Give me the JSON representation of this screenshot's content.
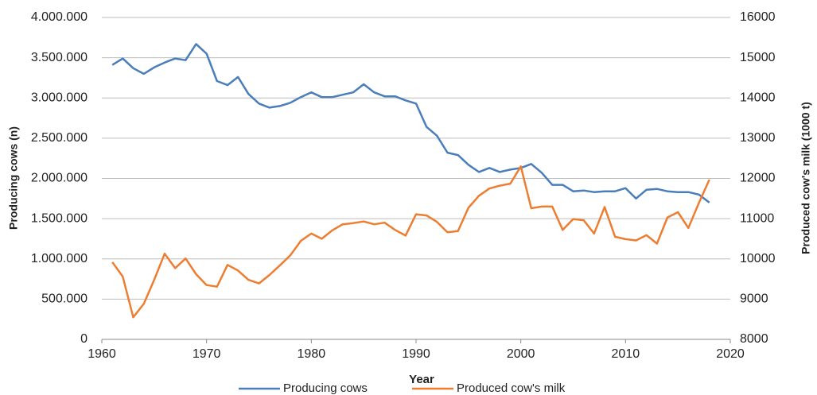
{
  "chart_data": {
    "type": "line",
    "x_label": "Year",
    "y_label": "Producing cows (n)",
    "y2_label": "Produced cow's milk (1000 t)",
    "x": [
      1961,
      1962,
      1963,
      1964,
      1965,
      1966,
      1967,
      1968,
      1969,
      1970,
      1971,
      1972,
      1973,
      1974,
      1975,
      1976,
      1977,
      1978,
      1979,
      1980,
      1981,
      1982,
      1983,
      1984,
      1985,
      1986,
      1987,
      1988,
      1989,
      1990,
      1991,
      1992,
      1993,
      1994,
      1995,
      1996,
      1997,
      1998,
      1999,
      2000,
      2001,
      2002,
      2003,
      2004,
      2005,
      2006,
      2007,
      2008,
      2009,
      2010,
      2011,
      2012,
      2013,
      2014,
      2015,
      2016,
      2017,
      2018
    ],
    "series": [
      {
        "name": "Producing cows",
        "color": "#4a7ebb",
        "axis": "y",
        "values": [
          3410000,
          3490000,
          3370000,
          3300000,
          3380000,
          3440000,
          3490000,
          3470000,
          3670000,
          3550000,
          3210000,
          3160000,
          3260000,
          3050000,
          2930000,
          2880000,
          2900000,
          2940000,
          3010000,
          3070000,
          3010000,
          3010000,
          3040000,
          3070000,
          3170000,
          3070000,
          3020000,
          3020000,
          2970000,
          2930000,
          2640000,
          2530000,
          2320000,
          2290000,
          2170000,
          2080000,
          2130000,
          2080000,
          2110000,
          2130000,
          2180000,
          2070000,
          1920000,
          1920000,
          1840000,
          1850000,
          1830000,
          1840000,
          1840000,
          1880000,
          1750000,
          1860000,
          1870000,
          1840000,
          1830000,
          1830000,
          1800000,
          1700000
        ]
      },
      {
        "name": "Produced cow's milk",
        "color": "#ed7d31",
        "axis": "y2",
        "values": [
          9920,
          9560,
          8550,
          8880,
          9480,
          10130,
          9770,
          10010,
          9620,
          9350,
          9310,
          9850,
          9710,
          9480,
          9390,
          9600,
          9840,
          10090,
          10450,
          10630,
          10500,
          10710,
          10860,
          10890,
          10930,
          10860,
          10900,
          10720,
          10580,
          11110,
          11080,
          10920,
          10660,
          10690,
          11270,
          11570,
          11750,
          11820,
          11870,
          12300,
          11260,
          11300,
          11300,
          10720,
          10990,
          10960,
          10630,
          11290,
          10550,
          10490,
          10460,
          10590,
          10380,
          11030,
          11160,
          10770,
          11390,
          11970
        ]
      }
    ],
    "xlim": [
      1960,
      2020
    ],
    "xticks": [
      1960,
      1970,
      1980,
      1990,
      2000,
      2010,
      2020
    ],
    "ylim": [
      0,
      4000000
    ],
    "yticks": [
      0,
      {
        "value": 500000,
        "label": "500.000"
      },
      {
        "value": 1000000,
        "label": "1.000.000"
      },
      {
        "value": 1500000,
        "label": "1.500.000"
      },
      {
        "value": 2000000,
        "label": "2.000.000"
      },
      {
        "value": 2500000,
        "label": "2.500.000"
      },
      {
        "value": 3000000,
        "label": "3.000.000"
      },
      {
        "value": 3500000,
        "label": "3.500.000"
      },
      {
        "value": 4000000,
        "label": "4.000.000"
      }
    ],
    "y2lim": [
      8000,
      16000
    ],
    "y2ticks": [
      8000,
      9000,
      10000,
      11000,
      12000,
      13000,
      14000,
      15000,
      16000
    ],
    "grid": true,
    "legend": "bottom"
  }
}
